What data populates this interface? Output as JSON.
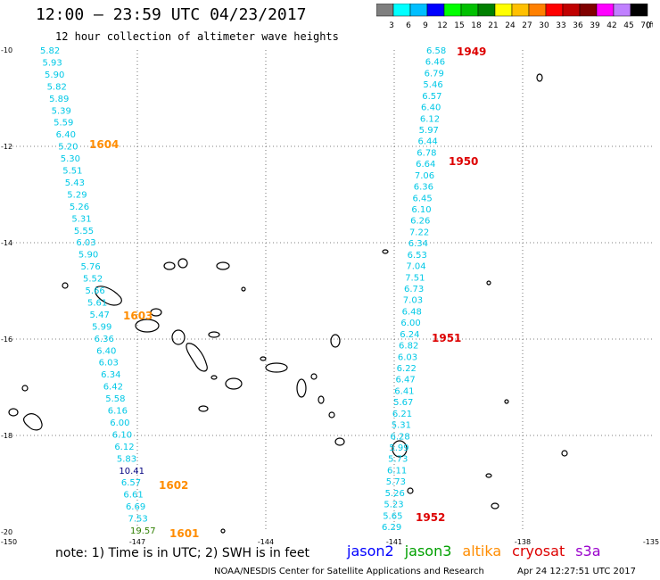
{
  "header": {
    "title": "12:00 – 23:59 UTC 04/23/2017",
    "subtitle": "12 hour collection of altimeter wave heights"
  },
  "color_scale": {
    "labels": [
      "3",
      "6",
      "9",
      "12",
      "15",
      "18",
      "21",
      "24",
      "27",
      "30",
      "33",
      "36",
      "39",
      "42",
      "45",
      "70",
      "(ft)"
    ],
    "colors": [
      "#7f7f7f",
      "#00ffff",
      "#00bfff",
      "#0000ff",
      "#00ff00",
      "#00c000",
      "#008000",
      "#ffff00",
      "#ffc000",
      "#ff8000",
      "#ff0000",
      "#c00000",
      "#800000",
      "#ff00ff",
      "#c080ff",
      "#000000"
    ]
  },
  "axes": {
    "lat_labels": [
      "-10",
      "-12",
      "-14",
      "-16",
      "-18",
      "-20"
    ],
    "lon_labels": [
      "-150",
      "-147",
      "-144",
      "-141",
      "-138",
      "-135"
    ]
  },
  "tracks": [
    {
      "id": "track-west",
      "color": "#00c8e6",
      "values": [
        "5.82",
        "5.93",
        "5.90",
        "5.82",
        "5.89",
        "5.39",
        "5.59",
        "6.40",
        "5.20",
        "5.30",
        "5.51",
        "5.43",
        "5.29",
        "5.26",
        "5.31",
        "5.55",
        "6.03",
        "5.90",
        "5.76",
        "5.52",
        "5.66",
        "5.61",
        "5.47",
        "5.99",
        "6.36",
        "6.40",
        "6.03",
        "6.34",
        "6.42",
        "5.58",
        "6.16",
        "6.00",
        "6.10",
        "6.12",
        "5.83",
        "10.41",
        "6.57",
        "6.61",
        "6.69",
        "7.53",
        "19.57"
      ],
      "special": {
        "35": "#000080",
        "40": "#2f7f00"
      }
    },
    {
      "id": "track-east",
      "color": "#00c8e6",
      "values": [
        "6.58",
        "6.46",
        "6.79",
        "5.46",
        "6.57",
        "6.40",
        "6.12",
        "5.97",
        "6.44",
        "6.78",
        "6.64",
        "7.06",
        "6.36",
        "6.45",
        "6.10",
        "6.26",
        "7.22",
        "6.34",
        "6.53",
        "7.04",
        "7.51",
        "6.73",
        "7.03",
        "6.48",
        "6.00",
        "6.24",
        "6.82",
        "6.03",
        "6.22",
        "6.47",
        "6.41",
        "5.67",
        "6.21",
        "5.31",
        "6.28",
        "5.99",
        "5.73",
        "6.11",
        "5.73",
        "5.26",
        "5.23",
        "5.65",
        "6.29"
      ],
      "special": {}
    }
  ],
  "pass_labels": [
    {
      "text": "1604",
      "color": "#ff8c00"
    },
    {
      "text": "1603",
      "color": "#ff8c00"
    },
    {
      "text": "1602",
      "color": "#ff8c00"
    },
    {
      "text": "1601",
      "color": "#ff8c00"
    },
    {
      "text": "1949",
      "color": "#dd0000"
    },
    {
      "text": "1950",
      "color": "#dd0000"
    },
    {
      "text": "1951",
      "color": "#dd0000"
    },
    {
      "text": "1952",
      "color": "#dd0000"
    }
  ],
  "footer": {
    "note": "note: 1) Time is in UTC; 2) SWH is in feet",
    "satellites": [
      {
        "name": "jason2",
        "color": "#0000ff"
      },
      {
        "name": "jason3",
        "color": "#00a000"
      },
      {
        "name": "altika",
        "color": "#ff8c00"
      },
      {
        "name": "cryosat",
        "color": "#dd0000"
      },
      {
        "name": "s3a",
        "color": "#9900cc"
      }
    ],
    "credit": "NOAA/NESDIS Center for Satellite Applications and Research",
    "timestamp": "Apr 24 12:27:51 UTC 2017"
  }
}
